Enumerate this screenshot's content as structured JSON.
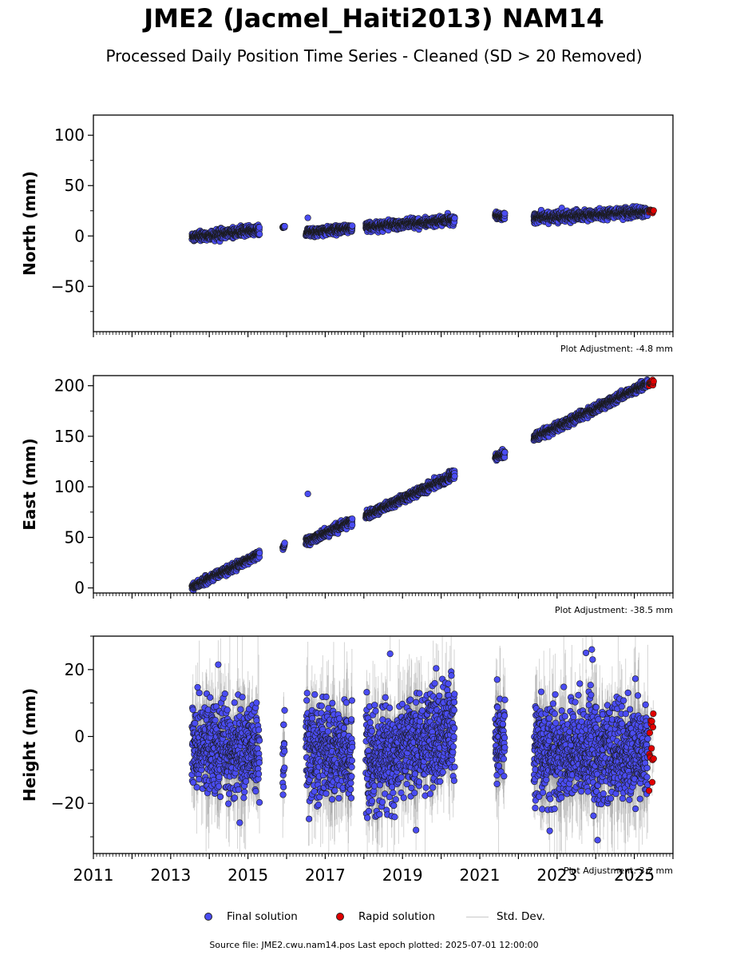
{
  "title": "JME2 (Jacmel_Haiti2013) NAM14",
  "subtitle": "Processed Daily Position Time Series - Cleaned (SD > 20 Removed)",
  "source_text": "Source file: JME2.cwu.nam14.pos  Last epoch plotted: 2025-07-01 12:00:00",
  "legend": {
    "final": "Final solution",
    "rapid": "Rapid solution",
    "std": "Std. Dev."
  },
  "colors": {
    "final": "#4a4cf2",
    "rapid": "#e00000",
    "std": "#c8c8c8",
    "edge": "#1a1a1a"
  },
  "chart_data": [
    {
      "type": "scatter",
      "ylabel": "North (mm)",
      "adjustment": "Plot Adjustment: -4.8 mm",
      "xlim": [
        2011,
        2026
      ],
      "ylim": [
        -95,
        120
      ],
      "yticks": [
        -50,
        0,
        50,
        100
      ],
      "show_xticklabels": false,
      "segments": [
        {
          "start": 2013.55,
          "end": 2015.3,
          "y0": -1,
          "y1": 6,
          "spread": 2.2
        },
        {
          "start": 2015.9,
          "end": 2015.95,
          "y0": 9,
          "y1": 9,
          "spread": 0.6
        },
        {
          "start": 2016.5,
          "end": 2017.7,
          "y0": 3,
          "y1": 8,
          "spread": 2
        },
        {
          "start": 2018.05,
          "end": 2020.35,
          "y0": 9,
          "y1": 16,
          "spread": 2
        },
        {
          "start": 2021.4,
          "end": 2021.65,
          "y0": 20,
          "y1": 19,
          "spread": 2
        },
        {
          "start": 2022.4,
          "end": 2025.35,
          "y0": 18,
          "y1": 24,
          "spread": 2.2
        }
      ],
      "outliers": [
        {
          "x": 2016.55,
          "y": 18
        }
      ],
      "rapid": {
        "start": 2025.38,
        "end": 2025.5,
        "y": 25,
        "spread": 1
      }
    },
    {
      "type": "scatter",
      "ylabel": "East (mm)",
      "adjustment": "Plot Adjustment: -38.5 mm",
      "xlim": [
        2011,
        2026
      ],
      "ylim": [
        -5,
        210
      ],
      "yticks": [
        0,
        50,
        100,
        150,
        200
      ],
      "show_xticklabels": false,
      "segments": [
        {
          "start": 2013.55,
          "end": 2015.3,
          "y0": 1,
          "y1": 33,
          "spread": 1.8
        },
        {
          "start": 2015.9,
          "end": 2015.95,
          "y0": 40,
          "y1": 42,
          "spread": 1
        },
        {
          "start": 2016.5,
          "end": 2017.7,
          "y0": 46,
          "y1": 66,
          "spread": 2
        },
        {
          "start": 2018.05,
          "end": 2020.35,
          "y0": 71,
          "y1": 112,
          "spread": 2
        },
        {
          "start": 2021.4,
          "end": 2021.65,
          "y0": 130,
          "y1": 132,
          "spread": 2
        },
        {
          "start": 2022.4,
          "end": 2025.35,
          "y0": 148,
          "y1": 202,
          "spread": 2
        }
      ],
      "outliers": [
        {
          "x": 2016.55,
          "y": 93
        }
      ],
      "rapid": {
        "start": 2025.38,
        "end": 2025.5,
        "y": 203,
        "spread": 1.5
      }
    },
    {
      "type": "scatter",
      "ylabel": "Height (mm)",
      "adjustment": "Plot Adjustment: 3.2 mm",
      "xlim": [
        2011,
        2026
      ],
      "ylim": [
        -35,
        30
      ],
      "yticks": [
        -20,
        0,
        20
      ],
      "xticks": [
        "2011",
        "2013",
        "2015",
        "2017",
        "2019",
        "2021",
        "2023",
        "2025"
      ],
      "show_xticklabels": true,
      "segments": [
        {
          "start": 2013.55,
          "end": 2015.3,
          "y0": -3,
          "y1": -4,
          "spread": 6.5
        },
        {
          "start": 2015.9,
          "end": 2015.95,
          "y0": -5,
          "y1": -5,
          "spread": 6
        },
        {
          "start": 2016.5,
          "end": 2017.7,
          "y0": -4,
          "y1": -5,
          "spread": 7
        },
        {
          "start": 2018.05,
          "end": 2020.35,
          "y0": -8,
          "y1": 2,
          "spread": 7
        },
        {
          "start": 2021.4,
          "end": 2021.65,
          "y0": -2,
          "y1": -2,
          "spread": 6
        },
        {
          "start": 2022.4,
          "end": 2025.35,
          "y0": -5,
          "y1": -5,
          "spread": 7
        }
      ],
      "outliers": [
        {
          "x": 2023.75,
          "y": 25
        },
        {
          "x": 2023.9,
          "y": 26
        },
        {
          "x": 2023.92,
          "y": 23
        },
        {
          "x": 2024.05,
          "y": -31
        },
        {
          "x": 2019.35,
          "y": -28
        },
        {
          "x": 2021.45,
          "y": 17
        }
      ],
      "rapid": {
        "start": 2025.38,
        "end": 2025.5,
        "y": -5,
        "spread": 7
      }
    }
  ]
}
